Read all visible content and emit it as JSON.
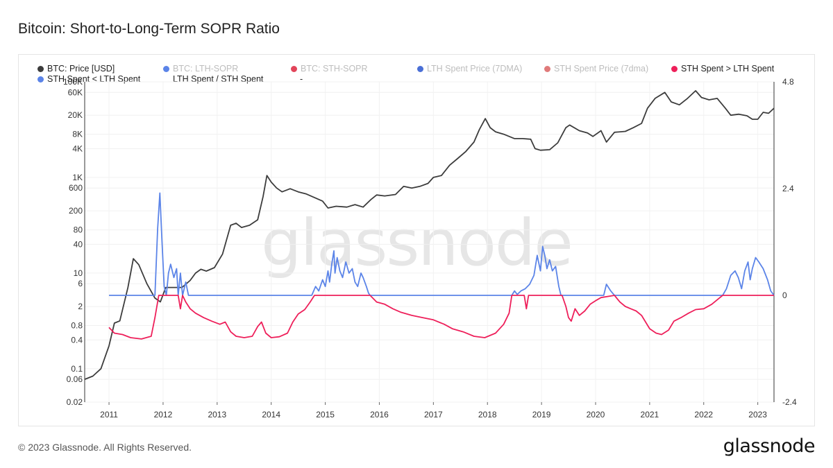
{
  "title": "Bitcoin: Short-to-Long-Term SOPR Ratio",
  "watermark": "glassnode",
  "footer": {
    "copyright": "© 2023 Glassnode. All Rights Reserved.",
    "logo": "glassnode"
  },
  "legend": [
    {
      "label": "BTC: Price [USD]",
      "color": "#3c3c3c",
      "active": true
    },
    {
      "label": "BTC: LTH-SOPR",
      "color": "#5b84e8",
      "active": false
    },
    {
      "label": "BTC: STH-SOPR",
      "color": "#e2445a",
      "active": false
    },
    {
      "label": "LTH Spent Price (7DMA)",
      "color": "#4a6fd6",
      "active": false
    },
    {
      "label": "STH Spent Price (7dma)",
      "color": "#e07a7a",
      "active": false
    },
    {
      "label": "STH Spent > LTH Spent",
      "color": "#ee1f5a",
      "active": true
    },
    {
      "label": "STH Spent < LTH Spent",
      "color": "#5b84e8",
      "active": true
    },
    {
      "label": "LTH Spent / STH Spent",
      "color": null,
      "active": true
    },
    {
      "label": "-",
      "color": null,
      "active": true
    }
  ],
  "chart_data": {
    "type": "line",
    "title": "Bitcoin: Short-to-Long-Term SOPR Ratio",
    "x_ticks": [
      "2011",
      "2012",
      "2013",
      "2014",
      "2015",
      "2016",
      "2017",
      "2018",
      "2019",
      "2020",
      "2021",
      "2022",
      "2023"
    ],
    "x_range": [
      2010.55,
      2023.3
    ],
    "y_left": {
      "scale": "log",
      "tick_labels": [
        "100K",
        "60K",
        "20K",
        "8K",
        "4K",
        "1K",
        "600",
        "200",
        "80",
        "40",
        "10",
        "6",
        "2",
        "0.8",
        "0.4",
        "0.1",
        "0.06",
        "0.02"
      ],
      "range": [
        0.02,
        100000
      ]
    },
    "y_right": {
      "scale": "linear",
      "tick_labels": [
        "4.8",
        "2.4",
        "0",
        "-2.4"
      ],
      "range": [
        -2.4,
        4.8
      ]
    },
    "series": [
      {
        "name": "BTC: Price [USD]",
        "axis": "left",
        "color": "#3c3c3c",
        "points": [
          [
            2010.55,
            0.06
          ],
          [
            2010.7,
            0.07
          ],
          [
            2010.85,
            0.1
          ],
          [
            2011.0,
            0.3
          ],
          [
            2011.1,
            0.9
          ],
          [
            2011.2,
            1.0
          ],
          [
            2011.35,
            5
          ],
          [
            2011.45,
            20
          ],
          [
            2011.55,
            15
          ],
          [
            2011.7,
            6
          ],
          [
            2011.85,
            3
          ],
          [
            2011.95,
            2.5
          ],
          [
            2012.05,
            5
          ],
          [
            2012.2,
            5
          ],
          [
            2012.35,
            5
          ],
          [
            2012.5,
            7
          ],
          [
            2012.6,
            10
          ],
          [
            2012.7,
            12
          ],
          [
            2012.8,
            11
          ],
          [
            2012.95,
            13
          ],
          [
            2013.1,
            25
          ],
          [
            2013.25,
            100
          ],
          [
            2013.35,
            110
          ],
          [
            2013.45,
            90
          ],
          [
            2013.6,
            100
          ],
          [
            2013.75,
            130
          ],
          [
            2013.85,
            400
          ],
          [
            2013.92,
            1100
          ],
          [
            2014.0,
            800
          ],
          [
            2014.1,
            600
          ],
          [
            2014.2,
            500
          ],
          [
            2014.35,
            580
          ],
          [
            2014.5,
            500
          ],
          [
            2014.65,
            450
          ],
          [
            2014.8,
            380
          ],
          [
            2014.95,
            320
          ],
          [
            2015.05,
            230
          ],
          [
            2015.2,
            250
          ],
          [
            2015.4,
            240
          ],
          [
            2015.55,
            270
          ],
          [
            2015.7,
            240
          ],
          [
            2015.85,
            350
          ],
          [
            2015.95,
            430
          ],
          [
            2016.1,
            410
          ],
          [
            2016.3,
            440
          ],
          [
            2016.45,
            650
          ],
          [
            2016.6,
            600
          ],
          [
            2016.75,
            650
          ],
          [
            2016.9,
            750
          ],
          [
            2017.0,
            1000
          ],
          [
            2017.15,
            1100
          ],
          [
            2017.3,
            1800
          ],
          [
            2017.45,
            2500
          ],
          [
            2017.6,
            3500
          ],
          [
            2017.75,
            5500
          ],
          [
            2017.85,
            10000
          ],
          [
            2017.96,
            17000
          ],
          [
            2018.05,
            11000
          ],
          [
            2018.15,
            9000
          ],
          [
            2018.3,
            8000
          ],
          [
            2018.5,
            6500
          ],
          [
            2018.65,
            6500
          ],
          [
            2018.8,
            6300
          ],
          [
            2018.88,
            4000
          ],
          [
            2018.98,
            3700
          ],
          [
            2019.15,
            3800
          ],
          [
            2019.3,
            5300
          ],
          [
            2019.45,
            11000
          ],
          [
            2019.52,
            12500
          ],
          [
            2019.7,
            9500
          ],
          [
            2019.85,
            8500
          ],
          [
            2019.95,
            7200
          ],
          [
            2020.1,
            9500
          ],
          [
            2020.2,
            5500
          ],
          [
            2020.35,
            8800
          ],
          [
            2020.55,
            9200
          ],
          [
            2020.7,
            11000
          ],
          [
            2020.85,
            13500
          ],
          [
            2020.96,
            28000
          ],
          [
            2021.1,
            45000
          ],
          [
            2021.28,
            60000
          ],
          [
            2021.4,
            38000
          ],
          [
            2021.55,
            33000
          ],
          [
            2021.7,
            45000
          ],
          [
            2021.85,
            65000
          ],
          [
            2021.96,
            47000
          ],
          [
            2022.1,
            42000
          ],
          [
            2022.25,
            45000
          ],
          [
            2022.4,
            28000
          ],
          [
            2022.5,
            20000
          ],
          [
            2022.65,
            21000
          ],
          [
            2022.8,
            19500
          ],
          [
            2022.9,
            16500
          ],
          [
            2023.0,
            16500
          ],
          [
            2023.1,
            23000
          ],
          [
            2023.2,
            22000
          ],
          [
            2023.3,
            28000
          ]
        ]
      },
      {
        "name": "STH Spent < LTH Spent",
        "axis": "right",
        "color": "#5b84e8",
        "points": [
          [
            2011.0,
            0
          ],
          [
            2011.85,
            0
          ],
          [
            2011.9,
            1.5
          ],
          [
            2011.94,
            2.3
          ],
          [
            2011.98,
            1.2
          ],
          [
            2012.02,
            0.2
          ],
          [
            2012.06,
            0
          ],
          [
            2012.1,
            0.5
          ],
          [
            2012.14,
            0.7
          ],
          [
            2012.2,
            0.4
          ],
          [
            2012.25,
            0.6
          ],
          [
            2012.28,
            0
          ],
          [
            2012.32,
            0.5
          ],
          [
            2012.36,
            0
          ],
          [
            2012.42,
            0.3
          ],
          [
            2012.47,
            0
          ],
          [
            2014.75,
            0
          ],
          [
            2014.82,
            0.2
          ],
          [
            2014.88,
            0.1
          ],
          [
            2014.95,
            0.35
          ],
          [
            2015.0,
            0.2
          ],
          [
            2015.05,
            0.55
          ],
          [
            2015.08,
            0.3
          ],
          [
            2015.12,
            0.7
          ],
          [
            2015.16,
            1.0
          ],
          [
            2015.18,
            0.5
          ],
          [
            2015.22,
            0.85
          ],
          [
            2015.27,
            0.55
          ],
          [
            2015.32,
            0.4
          ],
          [
            2015.38,
            0.75
          ],
          [
            2015.44,
            0.5
          ],
          [
            2015.5,
            0.6
          ],
          [
            2015.55,
            0.3
          ],
          [
            2015.6,
            0.2
          ],
          [
            2015.66,
            0.5
          ],
          [
            2015.7,
            0.4
          ],
          [
            2015.76,
            0.2
          ],
          [
            2015.8,
            0.05
          ],
          [
            2015.83,
            0
          ],
          [
            2018.45,
            0
          ],
          [
            2018.5,
            0.1
          ],
          [
            2018.55,
            0.02
          ],
          [
            2018.62,
            0.1
          ],
          [
            2018.7,
            0.15
          ],
          [
            2018.78,
            0.25
          ],
          [
            2018.86,
            0.45
          ],
          [
            2018.92,
            0.9
          ],
          [
            2018.98,
            0.55
          ],
          [
            2019.02,
            1.1
          ],
          [
            2019.06,
            0.9
          ],
          [
            2019.1,
            0.6
          ],
          [
            2019.15,
            0.8
          ],
          [
            2019.2,
            0.55
          ],
          [
            2019.26,
            0.65
          ],
          [
            2019.32,
            0.2
          ],
          [
            2019.36,
            0
          ],
          [
            2020.15,
            0
          ],
          [
            2020.2,
            0.25
          ],
          [
            2020.28,
            0.1
          ],
          [
            2020.35,
            0
          ],
          [
            2022.35,
            0
          ],
          [
            2022.42,
            0.15
          ],
          [
            2022.5,
            0.45
          ],
          [
            2022.58,
            0.55
          ],
          [
            2022.64,
            0.4
          ],
          [
            2022.7,
            0.15
          ],
          [
            2022.76,
            0.55
          ],
          [
            2022.82,
            0.75
          ],
          [
            2022.86,
            0.35
          ],
          [
            2022.9,
            0.6
          ],
          [
            2022.96,
            0.85
          ],
          [
            2023.02,
            0.75
          ],
          [
            2023.1,
            0.6
          ],
          [
            2023.18,
            0.35
          ],
          [
            2023.24,
            0.1
          ],
          [
            2023.3,
            0
          ]
        ]
      },
      {
        "name": "STH Spent > LTH Spent",
        "axis": "right",
        "color": "#ee1f5a",
        "points": [
          [
            2011.0,
            -0.72
          ],
          [
            2011.1,
            -0.85
          ],
          [
            2011.25,
            -0.88
          ],
          [
            2011.4,
            -0.95
          ],
          [
            2011.6,
            -0.98
          ],
          [
            2011.78,
            -0.92
          ],
          [
            2011.85,
            -0.5
          ],
          [
            2011.92,
            0
          ],
          [
            2012.28,
            0
          ],
          [
            2012.32,
            -0.3
          ],
          [
            2012.36,
            0
          ],
          [
            2012.42,
            -0.15
          ],
          [
            2012.5,
            -0.3
          ],
          [
            2012.6,
            -0.4
          ],
          [
            2012.75,
            -0.5
          ],
          [
            2012.9,
            -0.58
          ],
          [
            2013.05,
            -0.65
          ],
          [
            2013.15,
            -0.6
          ],
          [
            2013.25,
            -0.82
          ],
          [
            2013.35,
            -0.92
          ],
          [
            2013.5,
            -0.95
          ],
          [
            2013.65,
            -0.92
          ],
          [
            2013.75,
            -0.7
          ],
          [
            2013.82,
            -0.6
          ],
          [
            2013.9,
            -0.85
          ],
          [
            2014.0,
            -0.95
          ],
          [
            2014.15,
            -0.93
          ],
          [
            2014.3,
            -0.85
          ],
          [
            2014.4,
            -0.6
          ],
          [
            2014.5,
            -0.42
          ],
          [
            2014.62,
            -0.32
          ],
          [
            2014.72,
            -0.15
          ],
          [
            2014.8,
            0
          ],
          [
            2015.83,
            0
          ],
          [
            2015.95,
            -0.15
          ],
          [
            2016.1,
            -0.2
          ],
          [
            2016.25,
            -0.3
          ],
          [
            2016.4,
            -0.38
          ],
          [
            2016.6,
            -0.45
          ],
          [
            2016.8,
            -0.5
          ],
          [
            2017.0,
            -0.55
          ],
          [
            2017.2,
            -0.65
          ],
          [
            2017.35,
            -0.75
          ],
          [
            2017.55,
            -0.82
          ],
          [
            2017.75,
            -0.92
          ],
          [
            2017.95,
            -0.95
          ],
          [
            2018.15,
            -0.85
          ],
          [
            2018.3,
            -0.65
          ],
          [
            2018.4,
            -0.4
          ],
          [
            2018.45,
            0
          ],
          [
            2018.68,
            0
          ],
          [
            2018.72,
            -0.3
          ],
          [
            2018.76,
            0
          ],
          [
            2019.38,
            0
          ],
          [
            2019.45,
            -0.25
          ],
          [
            2019.5,
            -0.5
          ],
          [
            2019.55,
            -0.58
          ],
          [
            2019.62,
            -0.3
          ],
          [
            2019.7,
            -0.45
          ],
          [
            2019.8,
            -0.35
          ],
          [
            2019.9,
            -0.2
          ],
          [
            2020.0,
            -0.12
          ],
          [
            2020.1,
            -0.05
          ],
          [
            2020.35,
            0
          ],
          [
            2020.45,
            -0.15
          ],
          [
            2020.55,
            -0.25
          ],
          [
            2020.65,
            -0.3
          ],
          [
            2020.75,
            -0.35
          ],
          [
            2020.85,
            -0.45
          ],
          [
            2021.0,
            -0.75
          ],
          [
            2021.12,
            -0.85
          ],
          [
            2021.22,
            -0.88
          ],
          [
            2021.35,
            -0.78
          ],
          [
            2021.45,
            -0.58
          ],
          [
            2021.58,
            -0.5
          ],
          [
            2021.72,
            -0.4
          ],
          [
            2021.85,
            -0.32
          ],
          [
            2022.0,
            -0.3
          ],
          [
            2022.15,
            -0.2
          ],
          [
            2022.3,
            -0.05
          ],
          [
            2022.35,
            0
          ],
          [
            2023.3,
            0
          ]
        ]
      }
    ],
    "grid": true
  }
}
